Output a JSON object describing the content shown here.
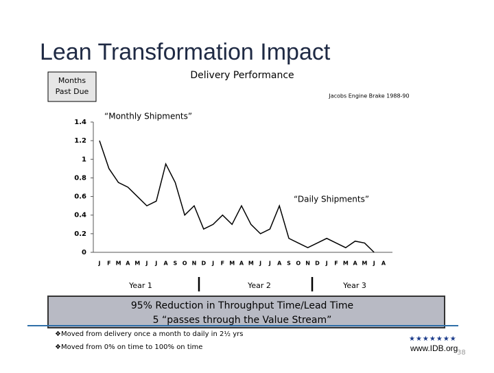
{
  "slide": {
    "title": "Lean Transformation Impact",
    "box_lines": [
      "95% Reduction in Throughput Time/Lead Time",
      "5 “passes through the Value Stream”"
    ],
    "bullets": [
      "❖Moved from delivery once a month to daily in 2½ yrs",
      "❖Moved from 0% on time to 100% on time"
    ],
    "url": "www.IDB.org",
    "page": "38"
  },
  "chart_data": {
    "type": "line",
    "title": "Delivery Performance",
    "subtitle": "Jacobs Engine Brake 1988-90",
    "y_label": "Months Past Due",
    "annotations": [
      "“Monthly Shipments”",
      "“Daily Shipments”"
    ],
    "year_labels": [
      "Year 1",
      "Year 2",
      "Year 3"
    ],
    "categories": [
      "J",
      "F",
      "M",
      "A",
      "M",
      "J",
      "J",
      "A",
      "S",
      "O",
      "N",
      "D",
      "J",
      "F",
      "M",
      "A",
      "M",
      "J",
      "J",
      "A",
      "S",
      "O",
      "N",
      "D",
      "J",
      "F",
      "M",
      "A",
      "M",
      "J",
      "A"
    ],
    "series": [
      {
        "name": "Months Past Due",
        "color": "#000000",
        "values": [
          1.2,
          0.9,
          0.75,
          0.7,
          0.6,
          0.5,
          0.55,
          0.95,
          0.75,
          0.4,
          0.5,
          0.25,
          0.3,
          0.4,
          0.3,
          0.5,
          0.3,
          0.2,
          0.25,
          0.5,
          0.15,
          0.1,
          0.05,
          0.1,
          0.15,
          0.1,
          0.05,
          0.12,
          0.1,
          0,
          null
        ]
      }
    ],
    "ylim": [
      0,
      1.4
    ],
    "yticks": [
      0,
      0.2,
      0.4,
      0.6,
      0.8,
      1,
      1.2,
      1.4
    ],
    "grid": false
  }
}
